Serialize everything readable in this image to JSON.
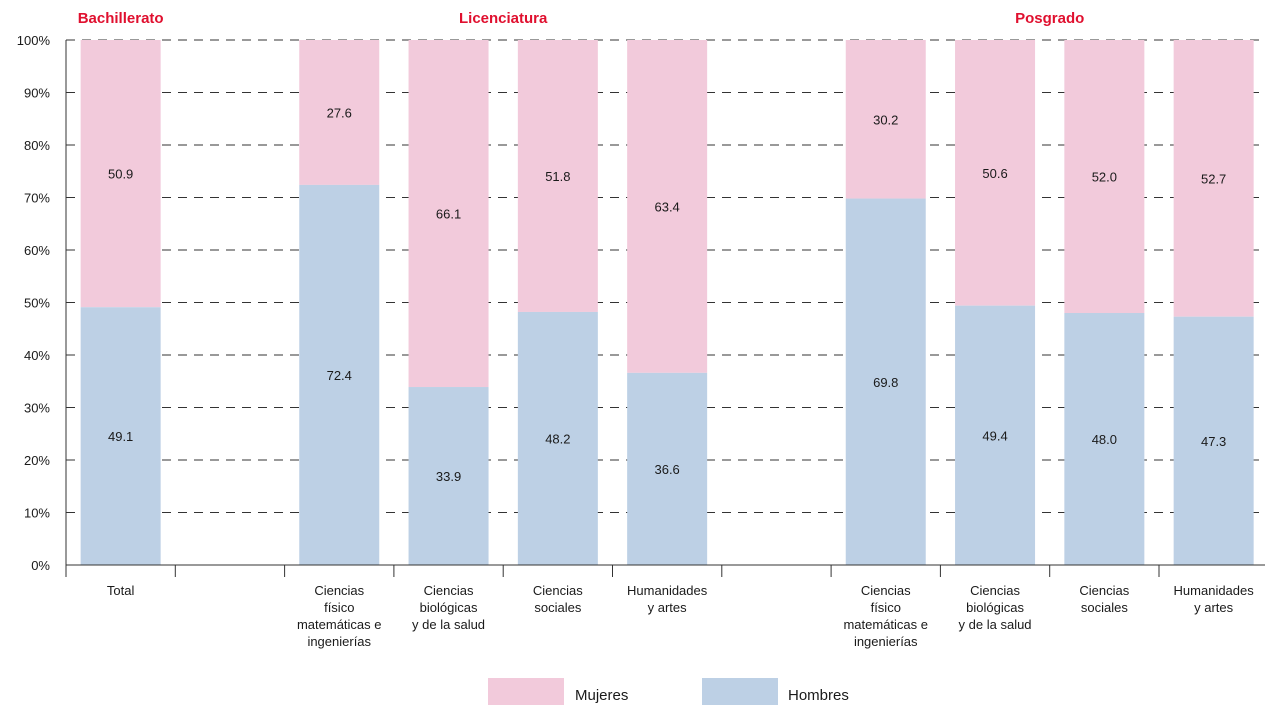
{
  "chart_data": {
    "type": "bar",
    "stacked": true,
    "percent": true,
    "group_titles": [
      "Bachillerato",
      "Licenciatura",
      "Posgrado"
    ],
    "y_ticks": [
      "0%",
      "10%",
      "20%",
      "30%",
      "40%",
      "50%",
      "60%",
      "70%",
      "80%",
      "90%",
      "100%"
    ],
    "ylim": [
      0,
      100
    ],
    "grid": "horizontal-dashed",
    "legend_position": "bottom",
    "categories": [
      {
        "label": [
          "Total"
        ],
        "group": "Bachillerato"
      },
      {
        "label": [],
        "group": ""
      },
      {
        "label": [
          "Ciencias",
          "físico",
          "matemáticas e",
          "ingenierías"
        ],
        "group": "Licenciatura"
      },
      {
        "label": [
          "Ciencias",
          "biológicas",
          "y de la salud"
        ],
        "group": "Licenciatura"
      },
      {
        "label": [
          "Ciencias",
          "sociales"
        ],
        "group": "Licenciatura"
      },
      {
        "label": [
          "Humanidades",
          "y artes"
        ],
        "group": "Licenciatura"
      },
      {
        "label": [],
        "group": ""
      },
      {
        "label": [
          "Ciencias",
          "físico",
          "matemáticas e",
          "ingenierías"
        ],
        "group": "Posgrado"
      },
      {
        "label": [
          "Ciencias",
          "biológicas",
          "y de la salud"
        ],
        "group": "Posgrado"
      },
      {
        "label": [
          "Ciencias",
          "sociales"
        ],
        "group": "Posgrado"
      },
      {
        "label": [
          "Humanidades",
          "y artes"
        ],
        "group": "Posgrado"
      }
    ],
    "series": [
      {
        "name": "Hombres",
        "color": "#bdd0e5",
        "values": [
          49.1,
          null,
          72.4,
          33.9,
          48.2,
          36.6,
          null,
          69.8,
          49.4,
          48.0,
          47.3
        ]
      },
      {
        "name": "Mujeres",
        "color": "#f2cadb",
        "values": [
          50.9,
          null,
          27.6,
          66.1,
          51.8,
          63.4,
          null,
          30.2,
          50.6,
          52.0,
          52.7
        ]
      }
    ],
    "value_labels_hombres": [
      "49.1",
      "",
      "72.4",
      "33.9",
      "48.2",
      "36.6",
      "",
      "69.8",
      "49.4",
      "48.0",
      "47.3"
    ],
    "value_labels_mujeres": [
      "50.9",
      "",
      "27.6",
      "66.1",
      "51.8",
      "63.4",
      "",
      "30.2",
      "50.6",
      "52.0",
      "52.7"
    ],
    "legend": [
      {
        "name": "Mujeres",
        "color": "#f2cadb"
      },
      {
        "name": "Hombres",
        "color": "#bdd0e5"
      }
    ],
    "title_color": "#e0102f",
    "text_color": "#1a1a1a"
  }
}
